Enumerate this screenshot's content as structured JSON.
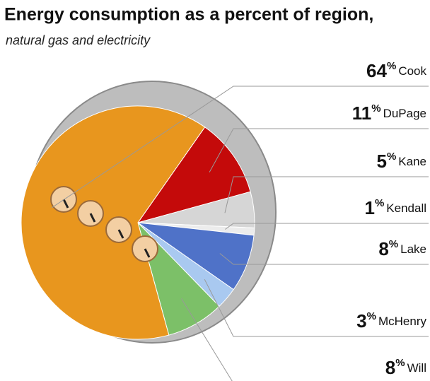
{
  "chart_data": {
    "type": "pie",
    "title": "Energy consumption as a percent of region,",
    "subtitle": "natural gas and electricity",
    "unit": "%",
    "categories": [
      "Cook",
      "DuPage",
      "Kane",
      "Kendall",
      "Lake",
      "McHenry",
      "Will"
    ],
    "values": [
      64,
      11,
      5,
      1,
      8,
      3,
      8
    ],
    "colors": [
      "#e8961e",
      "#c40a0a",
      "#d6d6d6",
      "#ececec",
      "#4f72c8",
      "#a9c9f0",
      "#7cc068"
    ]
  }
}
